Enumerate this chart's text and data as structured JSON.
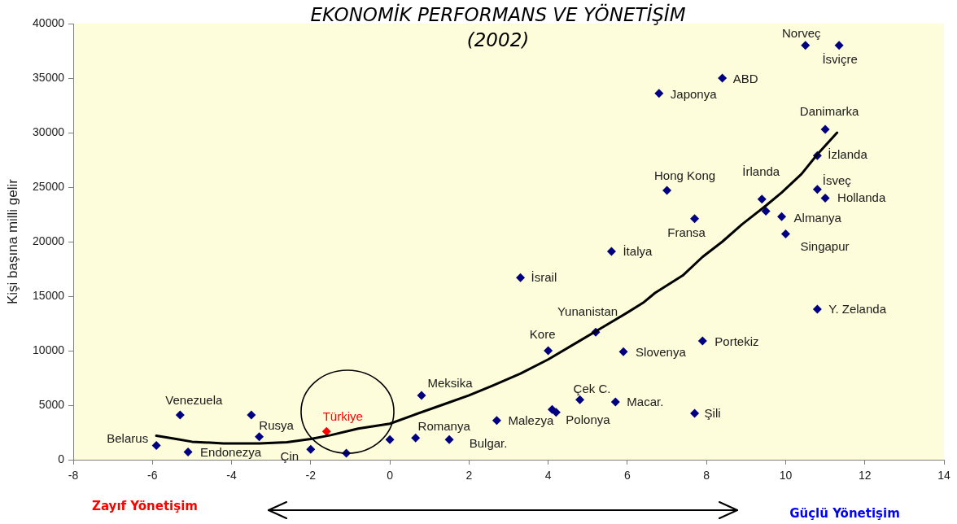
{
  "chart_data": {
    "type": "scatter",
    "title": "EKONOMİK PERFORMANS VE YÖNETİŞİM",
    "subtitle": "(2002)",
    "ylabel": "Kişi başına milli gelir",
    "xlim": [
      -8,
      14
    ],
    "xticks": [
      -8,
      -6,
      -4,
      -2,
      0,
      2,
      4,
      6,
      8,
      10,
      12,
      14
    ],
    "ylim": [
      0,
      40000
    ],
    "yticks": [
      0,
      5000,
      10000,
      15000,
      20000,
      25000,
      30000,
      35000,
      40000
    ],
    "marker": "diamond",
    "series": [
      {
        "color": "#000080",
        "x": [
          -5.9,
          -5.3,
          -3.5,
          -5.1,
          -3.3,
          -2.0,
          -1.1,
          0.0,
          0.65,
          1.5,
          0.8,
          2.7,
          4.1,
          4.2,
          4.8,
          5.7,
          4.0,
          5.2,
          5.9,
          7.9,
          7.7,
          3.3,
          5.6,
          7.0,
          7.7,
          6.8,
          8.4,
          10.5,
          11.35,
          11.0,
          10.8,
          9.4,
          9.5,
          10.8,
          11.0,
          9.9,
          10.0,
          10.8
        ],
        "values": [
          1300,
          4100,
          4100,
          700,
          2100,
          950,
          600,
          1850,
          2000,
          1850,
          5900,
          3600,
          4600,
          4350,
          5500,
          5300,
          10000,
          11700,
          9900,
          10900,
          4250,
          16700,
          19100,
          24700,
          22100,
          33600,
          35000,
          38000,
          38000,
          30300,
          27900,
          23900,
          22800,
          24800,
          24000,
          22300,
          20700,
          13800
        ],
        "value_labels": [
          "Belarus",
          "Venezuela",
          null,
          "Endonezya",
          "Rusya",
          "Çin",
          null,
          null,
          "Romanya",
          "Bulgar.",
          "Meksika",
          "Malezya",
          null,
          "Polonya",
          "Çek C.",
          "Macar.",
          "Kore",
          "Yunanistan",
          "Slovenya",
          "Portekiz",
          "Şili",
          "İsrail",
          "İtalya",
          "Hong Kong",
          "Fransa",
          "Japonya",
          "ABD",
          "Norveç",
          "İsviçre",
          "Danimarka",
          "İzlanda",
          "İrlanda",
          null,
          "İsveç",
          "Hollanda",
          "Almanya",
          "Singapur",
          "Y. Zelanda"
        ]
      },
      {
        "color": "#ff0000",
        "x": [
          -1.6
        ],
        "values": [
          2600
        ],
        "value_labels": [
          "Türkiye"
        ]
      },
      {
        "type": "line",
        "color": "#000000",
        "marker": "none",
        "line_style": "solid",
        "x": [
          -5.9,
          -5.4,
          -5.0,
          -4.2,
          -3.3,
          -2.6,
          -2.0,
          -1.5,
          -0.8,
          0.0,
          0.6,
          1.3,
          2.0,
          2.6,
          3.3,
          4.0,
          4.7,
          5.4,
          6.0,
          6.4,
          6.7,
          7.4,
          7.9,
          8.4,
          8.9,
          9.5,
          9.9,
          10.4,
          10.8,
          11.3
        ],
        "values": [
          2200,
          1900,
          1650,
          1500,
          1500,
          1600,
          1900,
          2250,
          2850,
          3300,
          4100,
          5000,
          5900,
          6800,
          7900,
          9200,
          10700,
          12200,
          13500,
          14400,
          15300,
          16900,
          18600,
          20000,
          21600,
          23300,
          24500,
          26200,
          28000,
          30000
        ]
      }
    ],
    "annotations": [
      "Zayıf Yönetişim",
      "Güçlü Yönetişim"
    ]
  }
}
